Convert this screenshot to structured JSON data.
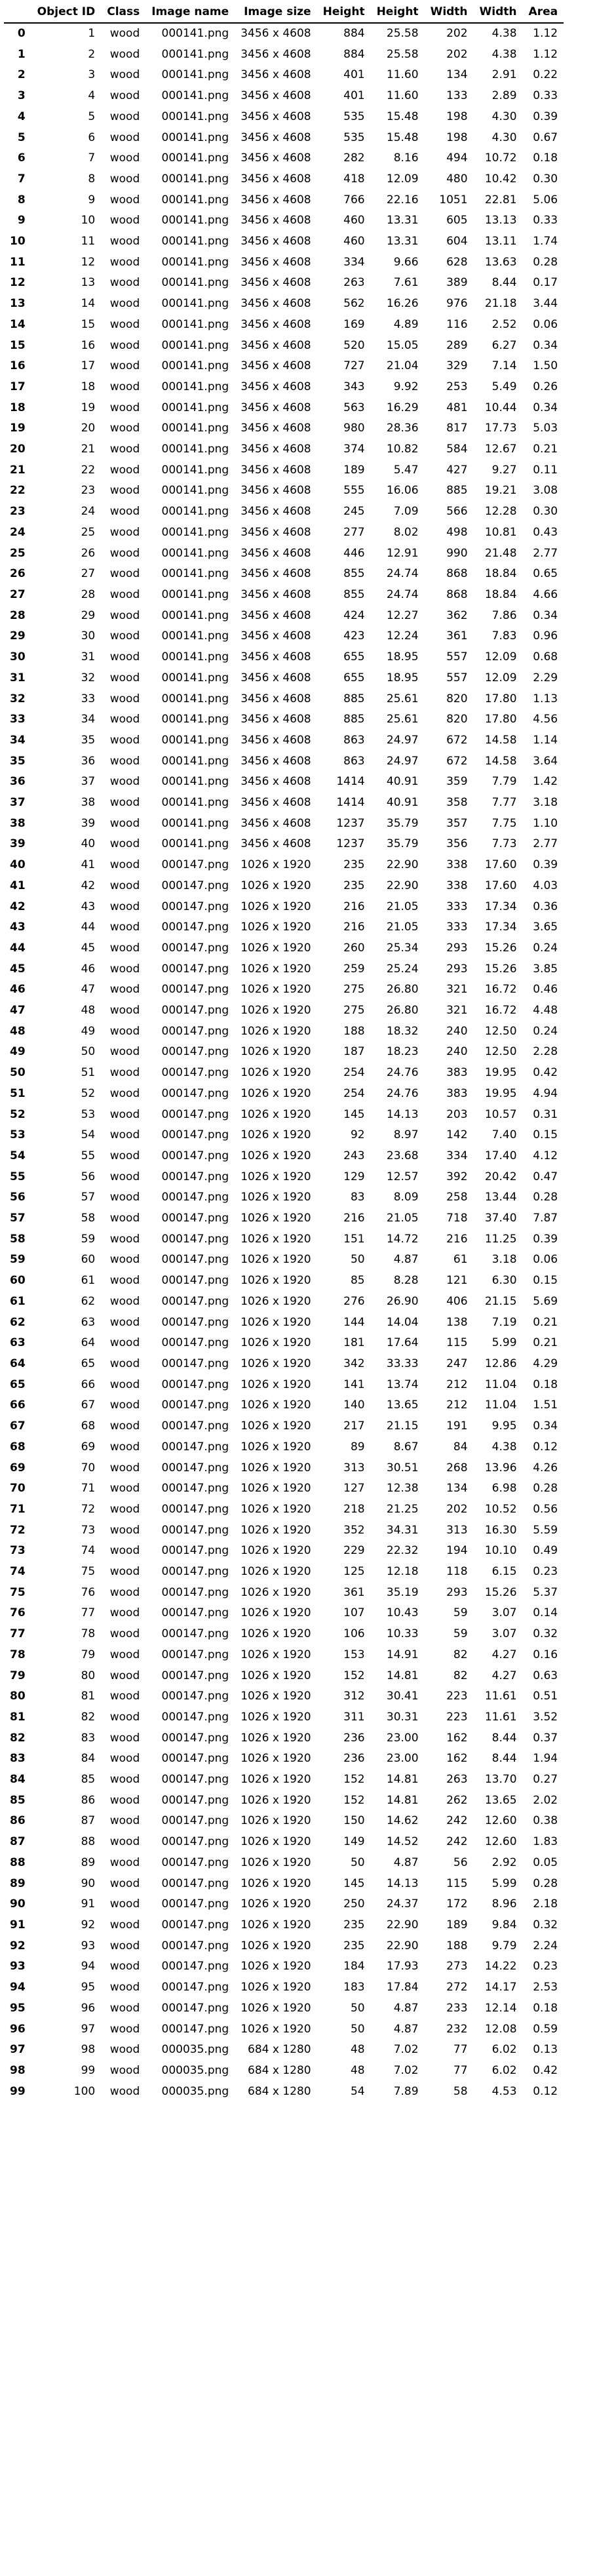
{
  "columns": [
    "",
    "Object ID",
    "Class",
    "Image name",
    "Image size",
    "Height",
    "Height",
    "Width",
    "Width",
    "Area"
  ],
  "rows": [
    [
      "0",
      "1",
      "wood",
      "000141.png",
      "3456 x 4608",
      "884",
      "25.58",
      "202",
      "4.38",
      "1.12"
    ],
    [
      "1",
      "2",
      "wood",
      "000141.png",
      "3456 x 4608",
      "884",
      "25.58",
      "202",
      "4.38",
      "1.12"
    ],
    [
      "2",
      "3",
      "wood",
      "000141.png",
      "3456 x 4608",
      "401",
      "11.60",
      "134",
      "2.91",
      "0.22"
    ],
    [
      "3",
      "4",
      "wood",
      "000141.png",
      "3456 x 4608",
      "401",
      "11.60",
      "133",
      "2.89",
      "0.33"
    ],
    [
      "4",
      "5",
      "wood",
      "000141.png",
      "3456 x 4608",
      "535",
      "15.48",
      "198",
      "4.30",
      "0.39"
    ],
    [
      "5",
      "6",
      "wood",
      "000141.png",
      "3456 x 4608",
      "535",
      "15.48",
      "198",
      "4.30",
      "0.67"
    ],
    [
      "6",
      "7",
      "wood",
      "000141.png",
      "3456 x 4608",
      "282",
      "8.16",
      "494",
      "10.72",
      "0.18"
    ],
    [
      "7",
      "8",
      "wood",
      "000141.png",
      "3456 x 4608",
      "418",
      "12.09",
      "480",
      "10.42",
      "0.30"
    ],
    [
      "8",
      "9",
      "wood",
      "000141.png",
      "3456 x 4608",
      "766",
      "22.16",
      "1051",
      "22.81",
      "5.06"
    ],
    [
      "9",
      "10",
      "wood",
      "000141.png",
      "3456 x 4608",
      "460",
      "13.31",
      "605",
      "13.13",
      "0.33"
    ],
    [
      "10",
      "11",
      "wood",
      "000141.png",
      "3456 x 4608",
      "460",
      "13.31",
      "604",
      "13.11",
      "1.74"
    ],
    [
      "11",
      "12",
      "wood",
      "000141.png",
      "3456 x 4608",
      "334",
      "9.66",
      "628",
      "13.63",
      "0.28"
    ],
    [
      "12",
      "13",
      "wood",
      "000141.png",
      "3456 x 4608",
      "263",
      "7.61",
      "389",
      "8.44",
      "0.17"
    ],
    [
      "13",
      "14",
      "wood",
      "000141.png",
      "3456 x 4608",
      "562",
      "16.26",
      "976",
      "21.18",
      "3.44"
    ],
    [
      "14",
      "15",
      "wood",
      "000141.png",
      "3456 x 4608",
      "169",
      "4.89",
      "116",
      "2.52",
      "0.06"
    ],
    [
      "15",
      "16",
      "wood",
      "000141.png",
      "3456 x 4608",
      "520",
      "15.05",
      "289",
      "6.27",
      "0.34"
    ],
    [
      "16",
      "17",
      "wood",
      "000141.png",
      "3456 x 4608",
      "727",
      "21.04",
      "329",
      "7.14",
      "1.50"
    ],
    [
      "17",
      "18",
      "wood",
      "000141.png",
      "3456 x 4608",
      "343",
      "9.92",
      "253",
      "5.49",
      "0.26"
    ],
    [
      "18",
      "19",
      "wood",
      "000141.png",
      "3456 x 4608",
      "563",
      "16.29",
      "481",
      "10.44",
      "0.34"
    ],
    [
      "19",
      "20",
      "wood",
      "000141.png",
      "3456 x 4608",
      "980",
      "28.36",
      "817",
      "17.73",
      "5.03"
    ],
    [
      "20",
      "21",
      "wood",
      "000141.png",
      "3456 x 4608",
      "374",
      "10.82",
      "584",
      "12.67",
      "0.21"
    ],
    [
      "21",
      "22",
      "wood",
      "000141.png",
      "3456 x 4608",
      "189",
      "5.47",
      "427",
      "9.27",
      "0.11"
    ],
    [
      "22",
      "23",
      "wood",
      "000141.png",
      "3456 x 4608",
      "555",
      "16.06",
      "885",
      "19.21",
      "3.08"
    ],
    [
      "23",
      "24",
      "wood",
      "000141.png",
      "3456 x 4608",
      "245",
      "7.09",
      "566",
      "12.28",
      "0.30"
    ],
    [
      "24",
      "25",
      "wood",
      "000141.png",
      "3456 x 4608",
      "277",
      "8.02",
      "498",
      "10.81",
      "0.43"
    ],
    [
      "25",
      "26",
      "wood",
      "000141.png",
      "3456 x 4608",
      "446",
      "12.91",
      "990",
      "21.48",
      "2.77"
    ],
    [
      "26",
      "27",
      "wood",
      "000141.png",
      "3456 x 4608",
      "855",
      "24.74",
      "868",
      "18.84",
      "0.65"
    ],
    [
      "27",
      "28",
      "wood",
      "000141.png",
      "3456 x 4608",
      "855",
      "24.74",
      "868",
      "18.84",
      "4.66"
    ],
    [
      "28",
      "29",
      "wood",
      "000141.png",
      "3456 x 4608",
      "424",
      "12.27",
      "362",
      "7.86",
      "0.34"
    ],
    [
      "29",
      "30",
      "wood",
      "000141.png",
      "3456 x 4608",
      "423",
      "12.24",
      "361",
      "7.83",
      "0.96"
    ],
    [
      "30",
      "31",
      "wood",
      "000141.png",
      "3456 x 4608",
      "655",
      "18.95",
      "557",
      "12.09",
      "0.68"
    ],
    [
      "31",
      "32",
      "wood",
      "000141.png",
      "3456 x 4608",
      "655",
      "18.95",
      "557",
      "12.09",
      "2.29"
    ],
    [
      "32",
      "33",
      "wood",
      "000141.png",
      "3456 x 4608",
      "885",
      "25.61",
      "820",
      "17.80",
      "1.13"
    ],
    [
      "33",
      "34",
      "wood",
      "000141.png",
      "3456 x 4608",
      "885",
      "25.61",
      "820",
      "17.80",
      "4.56"
    ],
    [
      "34",
      "35",
      "wood",
      "000141.png",
      "3456 x 4608",
      "863",
      "24.97",
      "672",
      "14.58",
      "1.14"
    ],
    [
      "35",
      "36",
      "wood",
      "000141.png",
      "3456 x 4608",
      "863",
      "24.97",
      "672",
      "14.58",
      "3.64"
    ],
    [
      "36",
      "37",
      "wood",
      "000141.png",
      "3456 x 4608",
      "1414",
      "40.91",
      "359",
      "7.79",
      "1.42"
    ],
    [
      "37",
      "38",
      "wood",
      "000141.png",
      "3456 x 4608",
      "1414",
      "40.91",
      "358",
      "7.77",
      "3.18"
    ],
    [
      "38",
      "39",
      "wood",
      "000141.png",
      "3456 x 4608",
      "1237",
      "35.79",
      "357",
      "7.75",
      "1.10"
    ],
    [
      "39",
      "40",
      "wood",
      "000141.png",
      "3456 x 4608",
      "1237",
      "35.79",
      "356",
      "7.73",
      "2.77"
    ],
    [
      "40",
      "41",
      "wood",
      "000147.png",
      "1026 x 1920",
      "235",
      "22.90",
      "338",
      "17.60",
      "0.39"
    ],
    [
      "41",
      "42",
      "wood",
      "000147.png",
      "1026 x 1920",
      "235",
      "22.90",
      "338",
      "17.60",
      "4.03"
    ],
    [
      "42",
      "43",
      "wood",
      "000147.png",
      "1026 x 1920",
      "216",
      "21.05",
      "333",
      "17.34",
      "0.36"
    ],
    [
      "43",
      "44",
      "wood",
      "000147.png",
      "1026 x 1920",
      "216",
      "21.05",
      "333",
      "17.34",
      "3.65"
    ],
    [
      "44",
      "45",
      "wood",
      "000147.png",
      "1026 x 1920",
      "260",
      "25.34",
      "293",
      "15.26",
      "0.24"
    ],
    [
      "45",
      "46",
      "wood",
      "000147.png",
      "1026 x 1920",
      "259",
      "25.24",
      "293",
      "15.26",
      "3.85"
    ],
    [
      "46",
      "47",
      "wood",
      "000147.png",
      "1026 x 1920",
      "275",
      "26.80",
      "321",
      "16.72",
      "0.46"
    ],
    [
      "47",
      "48",
      "wood",
      "000147.png",
      "1026 x 1920",
      "275",
      "26.80",
      "321",
      "16.72",
      "4.48"
    ],
    [
      "48",
      "49",
      "wood",
      "000147.png",
      "1026 x 1920",
      "188",
      "18.32",
      "240",
      "12.50",
      "0.24"
    ],
    [
      "49",
      "50",
      "wood",
      "000147.png",
      "1026 x 1920",
      "187",
      "18.23",
      "240",
      "12.50",
      "2.28"
    ],
    [
      "50",
      "51",
      "wood",
      "000147.png",
      "1026 x 1920",
      "254",
      "24.76",
      "383",
      "19.95",
      "0.42"
    ],
    [
      "51",
      "52",
      "wood",
      "000147.png",
      "1026 x 1920",
      "254",
      "24.76",
      "383",
      "19.95",
      "4.94"
    ],
    [
      "52",
      "53",
      "wood",
      "000147.png",
      "1026 x 1920",
      "145",
      "14.13",
      "203",
      "10.57",
      "0.31"
    ],
    [
      "53",
      "54",
      "wood",
      "000147.png",
      "1026 x 1920",
      "92",
      "8.97",
      "142",
      "7.40",
      "0.15"
    ],
    [
      "54",
      "55",
      "wood",
      "000147.png",
      "1026 x 1920",
      "243",
      "23.68",
      "334",
      "17.40",
      "4.12"
    ],
    [
      "55",
      "56",
      "wood",
      "000147.png",
      "1026 x 1920",
      "129",
      "12.57",
      "392",
      "20.42",
      "0.47"
    ],
    [
      "56",
      "57",
      "wood",
      "000147.png",
      "1026 x 1920",
      "83",
      "8.09",
      "258",
      "13.44",
      "0.28"
    ],
    [
      "57",
      "58",
      "wood",
      "000147.png",
      "1026 x 1920",
      "216",
      "21.05",
      "718",
      "37.40",
      "7.87"
    ],
    [
      "58",
      "59",
      "wood",
      "000147.png",
      "1026 x 1920",
      "151",
      "14.72",
      "216",
      "11.25",
      "0.39"
    ],
    [
      "59",
      "60",
      "wood",
      "000147.png",
      "1026 x 1920",
      "50",
      "4.87",
      "61",
      "3.18",
      "0.06"
    ],
    [
      "60",
      "61",
      "wood",
      "000147.png",
      "1026 x 1920",
      "85",
      "8.28",
      "121",
      "6.30",
      "0.15"
    ],
    [
      "61",
      "62",
      "wood",
      "000147.png",
      "1026 x 1920",
      "276",
      "26.90",
      "406",
      "21.15",
      "5.69"
    ],
    [
      "62",
      "63",
      "wood",
      "000147.png",
      "1026 x 1920",
      "144",
      "14.04",
      "138",
      "7.19",
      "0.21"
    ],
    [
      "63",
      "64",
      "wood",
      "000147.png",
      "1026 x 1920",
      "181",
      "17.64",
      "115",
      "5.99",
      "0.21"
    ],
    [
      "64",
      "65",
      "wood",
      "000147.png",
      "1026 x 1920",
      "342",
      "33.33",
      "247",
      "12.86",
      "4.29"
    ],
    [
      "65",
      "66",
      "wood",
      "000147.png",
      "1026 x 1920",
      "141",
      "13.74",
      "212",
      "11.04",
      "0.18"
    ],
    [
      "66",
      "67",
      "wood",
      "000147.png",
      "1026 x 1920",
      "140",
      "13.65",
      "212",
      "11.04",
      "1.51"
    ],
    [
      "67",
      "68",
      "wood",
      "000147.png",
      "1026 x 1920",
      "217",
      "21.15",
      "191",
      "9.95",
      "0.34"
    ],
    [
      "68",
      "69",
      "wood",
      "000147.png",
      "1026 x 1920",
      "89",
      "8.67",
      "84",
      "4.38",
      "0.12"
    ],
    [
      "69",
      "70",
      "wood",
      "000147.png",
      "1026 x 1920",
      "313",
      "30.51",
      "268",
      "13.96",
      "4.26"
    ],
    [
      "70",
      "71",
      "wood",
      "000147.png",
      "1026 x 1920",
      "127",
      "12.38",
      "134",
      "6.98",
      "0.28"
    ],
    [
      "71",
      "72",
      "wood",
      "000147.png",
      "1026 x 1920",
      "218",
      "21.25",
      "202",
      "10.52",
      "0.56"
    ],
    [
      "72",
      "73",
      "wood",
      "000147.png",
      "1026 x 1920",
      "352",
      "34.31",
      "313",
      "16.30",
      "5.59"
    ],
    [
      "73",
      "74",
      "wood",
      "000147.png",
      "1026 x 1920",
      "229",
      "22.32",
      "194",
      "10.10",
      "0.49"
    ],
    [
      "74",
      "75",
      "wood",
      "000147.png",
      "1026 x 1920",
      "125",
      "12.18",
      "118",
      "6.15",
      "0.23"
    ],
    [
      "75",
      "76",
      "wood",
      "000147.png",
      "1026 x 1920",
      "361",
      "35.19",
      "293",
      "15.26",
      "5.37"
    ],
    [
      "76",
      "77",
      "wood",
      "000147.png",
      "1026 x 1920",
      "107",
      "10.43",
      "59",
      "3.07",
      "0.14"
    ],
    [
      "77",
      "78",
      "wood",
      "000147.png",
      "1026 x 1920",
      "106",
      "10.33",
      "59",
      "3.07",
      "0.32"
    ],
    [
      "78",
      "79",
      "wood",
      "000147.png",
      "1026 x 1920",
      "153",
      "14.91",
      "82",
      "4.27",
      "0.16"
    ],
    [
      "79",
      "80",
      "wood",
      "000147.png",
      "1026 x 1920",
      "152",
      "14.81",
      "82",
      "4.27",
      "0.63"
    ],
    [
      "80",
      "81",
      "wood",
      "000147.png",
      "1026 x 1920",
      "312",
      "30.41",
      "223",
      "11.61",
      "0.51"
    ],
    [
      "81",
      "82",
      "wood",
      "000147.png",
      "1026 x 1920",
      "311",
      "30.31",
      "223",
      "11.61",
      "3.52"
    ],
    [
      "82",
      "83",
      "wood",
      "000147.png",
      "1026 x 1920",
      "236",
      "23.00",
      "162",
      "8.44",
      "0.37"
    ],
    [
      "83",
      "84",
      "wood",
      "000147.png",
      "1026 x 1920",
      "236",
      "23.00",
      "162",
      "8.44",
      "1.94"
    ],
    [
      "84",
      "85",
      "wood",
      "000147.png",
      "1026 x 1920",
      "152",
      "14.81",
      "263",
      "13.70",
      "0.27"
    ],
    [
      "85",
      "86",
      "wood",
      "000147.png",
      "1026 x 1920",
      "152",
      "14.81",
      "262",
      "13.65",
      "2.02"
    ],
    [
      "86",
      "87",
      "wood",
      "000147.png",
      "1026 x 1920",
      "150",
      "14.62",
      "242",
      "12.60",
      "0.38"
    ],
    [
      "87",
      "88",
      "wood",
      "000147.png",
      "1026 x 1920",
      "149",
      "14.52",
      "242",
      "12.60",
      "1.83"
    ],
    [
      "88",
      "89",
      "wood",
      "000147.png",
      "1026 x 1920",
      "50",
      "4.87",
      "56",
      "2.92",
      "0.05"
    ],
    [
      "89",
      "90",
      "wood",
      "000147.png",
      "1026 x 1920",
      "145",
      "14.13",
      "115",
      "5.99",
      "0.28"
    ],
    [
      "90",
      "91",
      "wood",
      "000147.png",
      "1026 x 1920",
      "250",
      "24.37",
      "172",
      "8.96",
      "2.18"
    ],
    [
      "91",
      "92",
      "wood",
      "000147.png",
      "1026 x 1920",
      "235",
      "22.90",
      "189",
      "9.84",
      "0.32"
    ],
    [
      "92",
      "93",
      "wood",
      "000147.png",
      "1026 x 1920",
      "235",
      "22.90",
      "188",
      "9.79",
      "2.24"
    ],
    [
      "93",
      "94",
      "wood",
      "000147.png",
      "1026 x 1920",
      "184",
      "17.93",
      "273",
      "14.22",
      "0.23"
    ],
    [
      "94",
      "95",
      "wood",
      "000147.png",
      "1026 x 1920",
      "183",
      "17.84",
      "272",
      "14.17",
      "2.53"
    ],
    [
      "95",
      "96",
      "wood",
      "000147.png",
      "1026 x 1920",
      "50",
      "4.87",
      "233",
      "12.14",
      "0.18"
    ],
    [
      "96",
      "97",
      "wood",
      "000147.png",
      "1026 x 1920",
      "50",
      "4.87",
      "232",
      "12.08",
      "0.59"
    ],
    [
      "97",
      "98",
      "wood",
      "000035.png",
      "684 x 1280",
      "48",
      "7.02",
      "77",
      "6.02",
      "0.13"
    ],
    [
      "98",
      "99",
      "wood",
      "000035.png",
      "684 x 1280",
      "48",
      "7.02",
      "77",
      "6.02",
      "0.42"
    ],
    [
      "99",
      "100",
      "wood",
      "000035.png",
      "684 x 1280",
      "54",
      "7.89",
      "58",
      "4.53",
      "0.12"
    ]
  ]
}
